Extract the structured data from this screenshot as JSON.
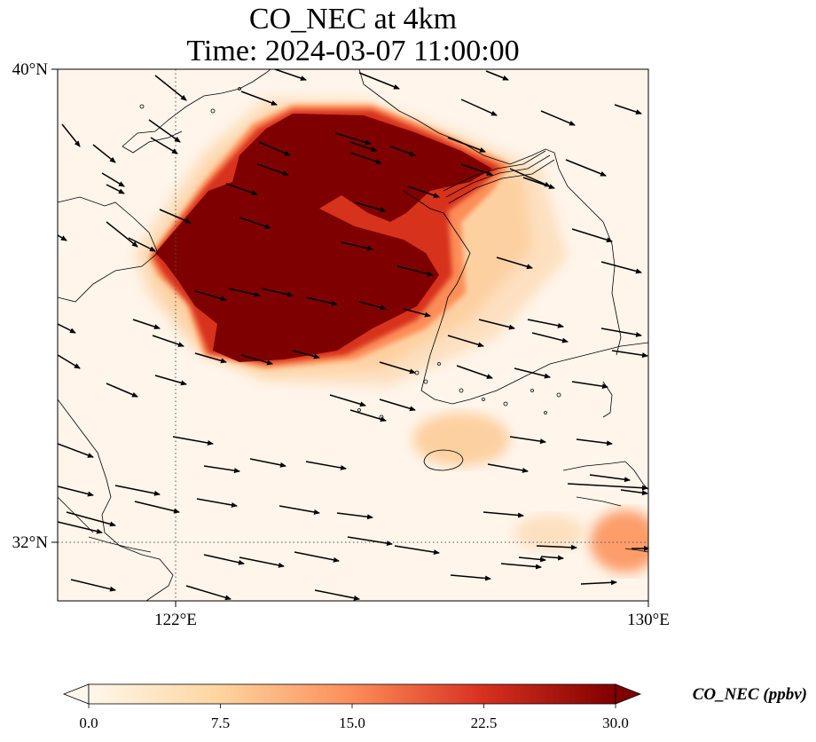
{
  "figure": {
    "title_line1": "CO_NEC at 4km",
    "title_line2": "Time: 2024-03-07 11:00:00"
  },
  "map": {
    "extent": {
      "lon_min": 120.4,
      "lon_max": 130.0,
      "lat_min": 31.2,
      "lat_max": 40.0
    },
    "lon_ticks": [
      {
        "value": 122,
        "label": "122°E"
      },
      {
        "value": 130,
        "label": "130°E"
      }
    ],
    "lat_ticks": [
      {
        "value": 40,
        "label": "40°N"
      },
      {
        "value": 32,
        "label": "32°N"
      }
    ],
    "gridlines": "dotted at 122°E and 32°N",
    "background_color": "#fff5eb",
    "field": "CO_NEC",
    "plume_core": "saturated (>=30 ppbv) over Yellow Sea / Korea Bay, approx 121.7–127.8°E, 34.2–38.9°N",
    "wind_vectors": "black arrows, predominantly westerly to north-westerly"
  },
  "colorbar": {
    "label": "CO_NEC (ppbv)",
    "colormap": "OrRd",
    "vmin": 0.0,
    "vmax": 30.0,
    "extend": "both",
    "ticks": [
      "0.0",
      "7.5",
      "15.0",
      "22.5",
      "30.0"
    ],
    "color_stops": [
      "#fff7ec",
      "#fdd49e",
      "#fc8d59",
      "#d7301f",
      "#7f0000"
    ]
  }
}
